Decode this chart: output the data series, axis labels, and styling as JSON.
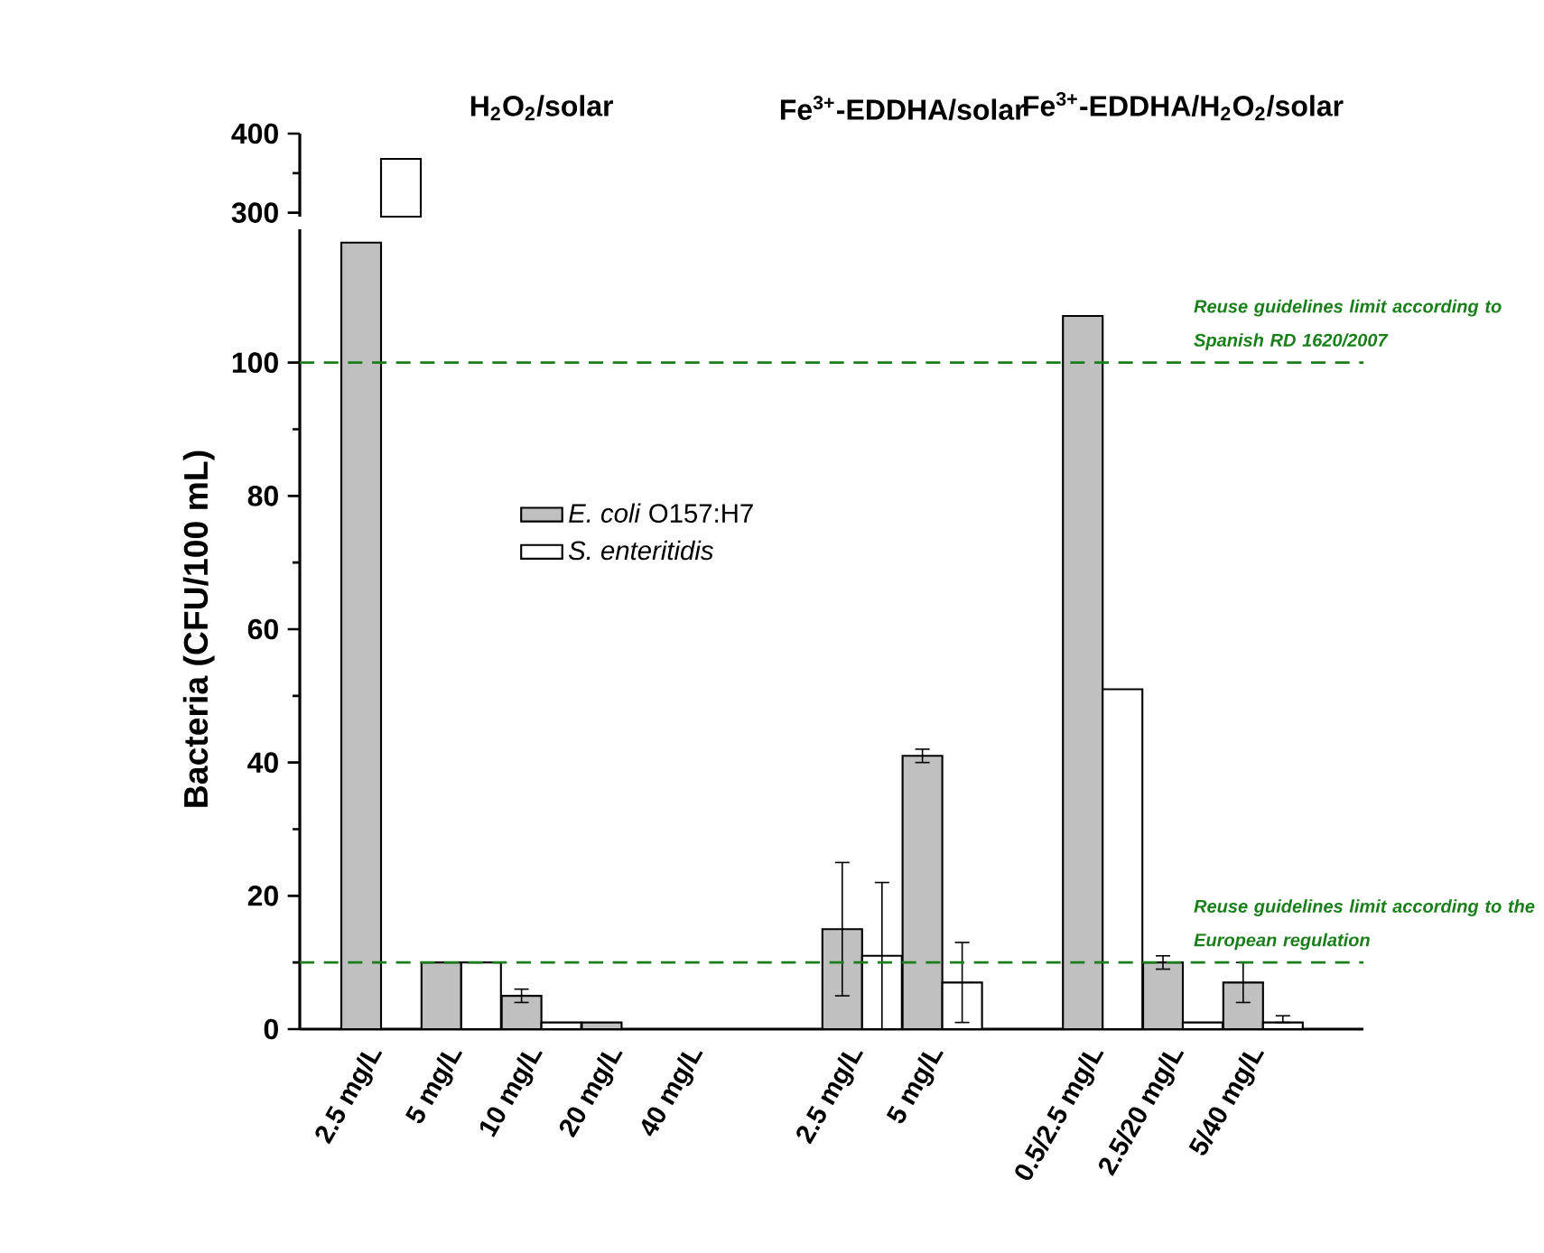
{
  "chart_data": [
    {
      "type": "bar",
      "categories": [
        null
      ],
      "series": [
        {
          "color": "#ffffff",
          "values": [
            368
          ]
        }
      ],
      "ylim": [
        295,
        400
      ],
      "yticks": [
        300,
        400
      ],
      "tick_labels": "y",
      "annotations": [
        "H$_{2}$O$_{2}$/solar",
        "Fe$^{3+}$-EDDHA/solar",
        "Fe$^{3+}$-EDDHA/H$_{2}$O$_{2}$/solar"
      ]
    },
    {
      "type": "bar",
      "ylabel": "Bacteria (CFU/100 mL)",
      "categories": [
        "2.5 mg/L",
        "5 mg/L",
        "10 mg/L",
        "20 mg/L",
        "40 mg/L",
        null,
        "2.5 mg/L",
        "5 mg/L",
        null,
        "0.5/2.5 mg/L",
        "2.5/20 mg/L",
        "5/40 mg/L"
      ],
      "series": [
        {
          "name": "*E. coli* O157:H7",
          "color": "#c0c0c0",
          "values": [
            118,
            10,
            5,
            1,
            null,
            null,
            15,
            41,
            null,
            107,
            10,
            7
          ],
          "errors": [
            null,
            null,
            1,
            null,
            null,
            null,
            10,
            1,
            null,
            null,
            1,
            3
          ]
        },
        {
          "name": "*S. enteritidis*",
          "color": "#ffffff",
          "values": [
            null,
            10,
            1,
            null,
            null,
            null,
            11,
            7,
            null,
            51,
            1,
            1
          ],
          "errors": [
            null,
            null,
            null,
            null,
            null,
            null,
            11,
            6,
            null,
            null,
            null,
            [
              1,
              2
            ]
          ]
        }
      ],
      "ylim": [
        0,
        120
      ],
      "yticks": [
        0,
        20,
        40,
        60,
        80,
        100
      ],
      "legend": "center",
      "ref_lines": [
        {
          "axis": "y",
          "value": 100,
          "label": "Reuse guidelines limit according to Spanish RD 1620/2007",
          "color": "#1a7f1a",
          "line_style": "dashed"
        },
        {
          "axis": "y",
          "value": 10,
          "label": "Reuse guidelines limit according to the European regulation",
          "color": "#1a7f1a",
          "line_style": "dashed"
        }
      ]
    }
  ]
}
